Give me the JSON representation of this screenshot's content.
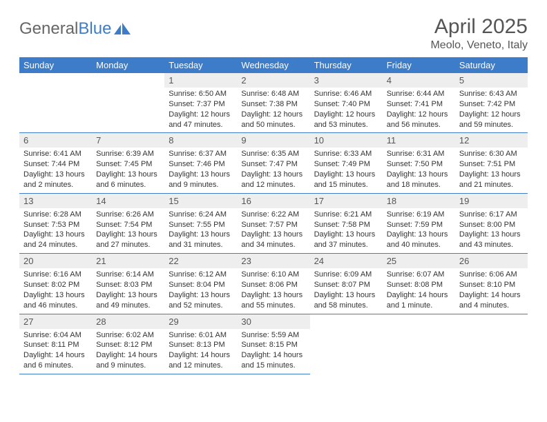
{
  "brand": {
    "name_part1": "General",
    "name_part2": "Blue"
  },
  "header": {
    "title": "April 2025",
    "location": "Meolo, Veneto, Italy"
  },
  "colors": {
    "header_bg": "#3d7cc9",
    "header_text": "#ffffff",
    "daynum_bg": "#eeeeee",
    "daynum_text": "#555555",
    "body_text": "#333333",
    "rule": "#3d7cc9",
    "title_text": "#555555",
    "logo_gray": "#666666",
    "logo_blue": "#3d7cc9",
    "page_bg": "#ffffff"
  },
  "typography": {
    "title_fontsize": 30,
    "location_fontsize": 16,
    "weekday_fontsize": 13,
    "daynum_fontsize": 13,
    "body_fontsize": 11,
    "font_family": "Arial, Helvetica, sans-serif"
  },
  "calendar": {
    "weekdays": [
      "Sunday",
      "Monday",
      "Tuesday",
      "Wednesday",
      "Thursday",
      "Friday",
      "Saturday"
    ],
    "first_weekday_index": 2,
    "days": [
      {
        "n": 1,
        "sunrise": "6:50 AM",
        "sunset": "7:37 PM",
        "daylight": "12 hours and 47 minutes."
      },
      {
        "n": 2,
        "sunrise": "6:48 AM",
        "sunset": "7:38 PM",
        "daylight": "12 hours and 50 minutes."
      },
      {
        "n": 3,
        "sunrise": "6:46 AM",
        "sunset": "7:40 PM",
        "daylight": "12 hours and 53 minutes."
      },
      {
        "n": 4,
        "sunrise": "6:44 AM",
        "sunset": "7:41 PM",
        "daylight": "12 hours and 56 minutes."
      },
      {
        "n": 5,
        "sunrise": "6:43 AM",
        "sunset": "7:42 PM",
        "daylight": "12 hours and 59 minutes."
      },
      {
        "n": 6,
        "sunrise": "6:41 AM",
        "sunset": "7:44 PM",
        "daylight": "13 hours and 2 minutes."
      },
      {
        "n": 7,
        "sunrise": "6:39 AM",
        "sunset": "7:45 PM",
        "daylight": "13 hours and 6 minutes."
      },
      {
        "n": 8,
        "sunrise": "6:37 AM",
        "sunset": "7:46 PM",
        "daylight": "13 hours and 9 minutes."
      },
      {
        "n": 9,
        "sunrise": "6:35 AM",
        "sunset": "7:47 PM",
        "daylight": "13 hours and 12 minutes."
      },
      {
        "n": 10,
        "sunrise": "6:33 AM",
        "sunset": "7:49 PM",
        "daylight": "13 hours and 15 minutes."
      },
      {
        "n": 11,
        "sunrise": "6:31 AM",
        "sunset": "7:50 PM",
        "daylight": "13 hours and 18 minutes."
      },
      {
        "n": 12,
        "sunrise": "6:30 AM",
        "sunset": "7:51 PM",
        "daylight": "13 hours and 21 minutes."
      },
      {
        "n": 13,
        "sunrise": "6:28 AM",
        "sunset": "7:53 PM",
        "daylight": "13 hours and 24 minutes."
      },
      {
        "n": 14,
        "sunrise": "6:26 AM",
        "sunset": "7:54 PM",
        "daylight": "13 hours and 27 minutes."
      },
      {
        "n": 15,
        "sunrise": "6:24 AM",
        "sunset": "7:55 PM",
        "daylight": "13 hours and 31 minutes."
      },
      {
        "n": 16,
        "sunrise": "6:22 AM",
        "sunset": "7:57 PM",
        "daylight": "13 hours and 34 minutes."
      },
      {
        "n": 17,
        "sunrise": "6:21 AM",
        "sunset": "7:58 PM",
        "daylight": "13 hours and 37 minutes."
      },
      {
        "n": 18,
        "sunrise": "6:19 AM",
        "sunset": "7:59 PM",
        "daylight": "13 hours and 40 minutes."
      },
      {
        "n": 19,
        "sunrise": "6:17 AM",
        "sunset": "8:00 PM",
        "daylight": "13 hours and 43 minutes."
      },
      {
        "n": 20,
        "sunrise": "6:16 AM",
        "sunset": "8:02 PM",
        "daylight": "13 hours and 46 minutes."
      },
      {
        "n": 21,
        "sunrise": "6:14 AM",
        "sunset": "8:03 PM",
        "daylight": "13 hours and 49 minutes."
      },
      {
        "n": 22,
        "sunrise": "6:12 AM",
        "sunset": "8:04 PM",
        "daylight": "13 hours and 52 minutes."
      },
      {
        "n": 23,
        "sunrise": "6:10 AM",
        "sunset": "8:06 PM",
        "daylight": "13 hours and 55 minutes."
      },
      {
        "n": 24,
        "sunrise": "6:09 AM",
        "sunset": "8:07 PM",
        "daylight": "13 hours and 58 minutes."
      },
      {
        "n": 25,
        "sunrise": "6:07 AM",
        "sunset": "8:08 PM",
        "daylight": "14 hours and 1 minute."
      },
      {
        "n": 26,
        "sunrise": "6:06 AM",
        "sunset": "8:10 PM",
        "daylight": "14 hours and 4 minutes."
      },
      {
        "n": 27,
        "sunrise": "6:04 AM",
        "sunset": "8:11 PM",
        "daylight": "14 hours and 6 minutes."
      },
      {
        "n": 28,
        "sunrise": "6:02 AM",
        "sunset": "8:12 PM",
        "daylight": "14 hours and 9 minutes."
      },
      {
        "n": 29,
        "sunrise": "6:01 AM",
        "sunset": "8:13 PM",
        "daylight": "14 hours and 12 minutes."
      },
      {
        "n": 30,
        "sunrise": "5:59 AM",
        "sunset": "8:15 PM",
        "daylight": "14 hours and 15 minutes."
      }
    ],
    "labels": {
      "sunrise": "Sunrise:",
      "sunset": "Sunset:",
      "daylight": "Daylight:"
    }
  }
}
